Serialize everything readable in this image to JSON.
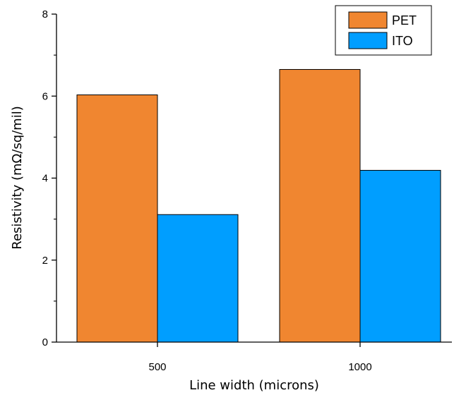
{
  "chart_data": {
    "type": "bar",
    "categories": [
      "500",
      "1000"
    ],
    "series": [
      {
        "name": "PET",
        "values": [
          6.03,
          6.65
        ],
        "color": "#F08630"
      },
      {
        "name": "ITO",
        "values": [
          3.11,
          4.19
        ],
        "color": "#009EFF"
      }
    ],
    "xlabel": "Line width (microns)",
    "ylabel": "Resistivity (mΩ/sq/mil)",
    "ylim": [
      0,
      8
    ],
    "yticks": [
      "0",
      "2",
      "4",
      "6",
      "8"
    ],
    "legend_position": "top-right",
    "grid": false
  }
}
